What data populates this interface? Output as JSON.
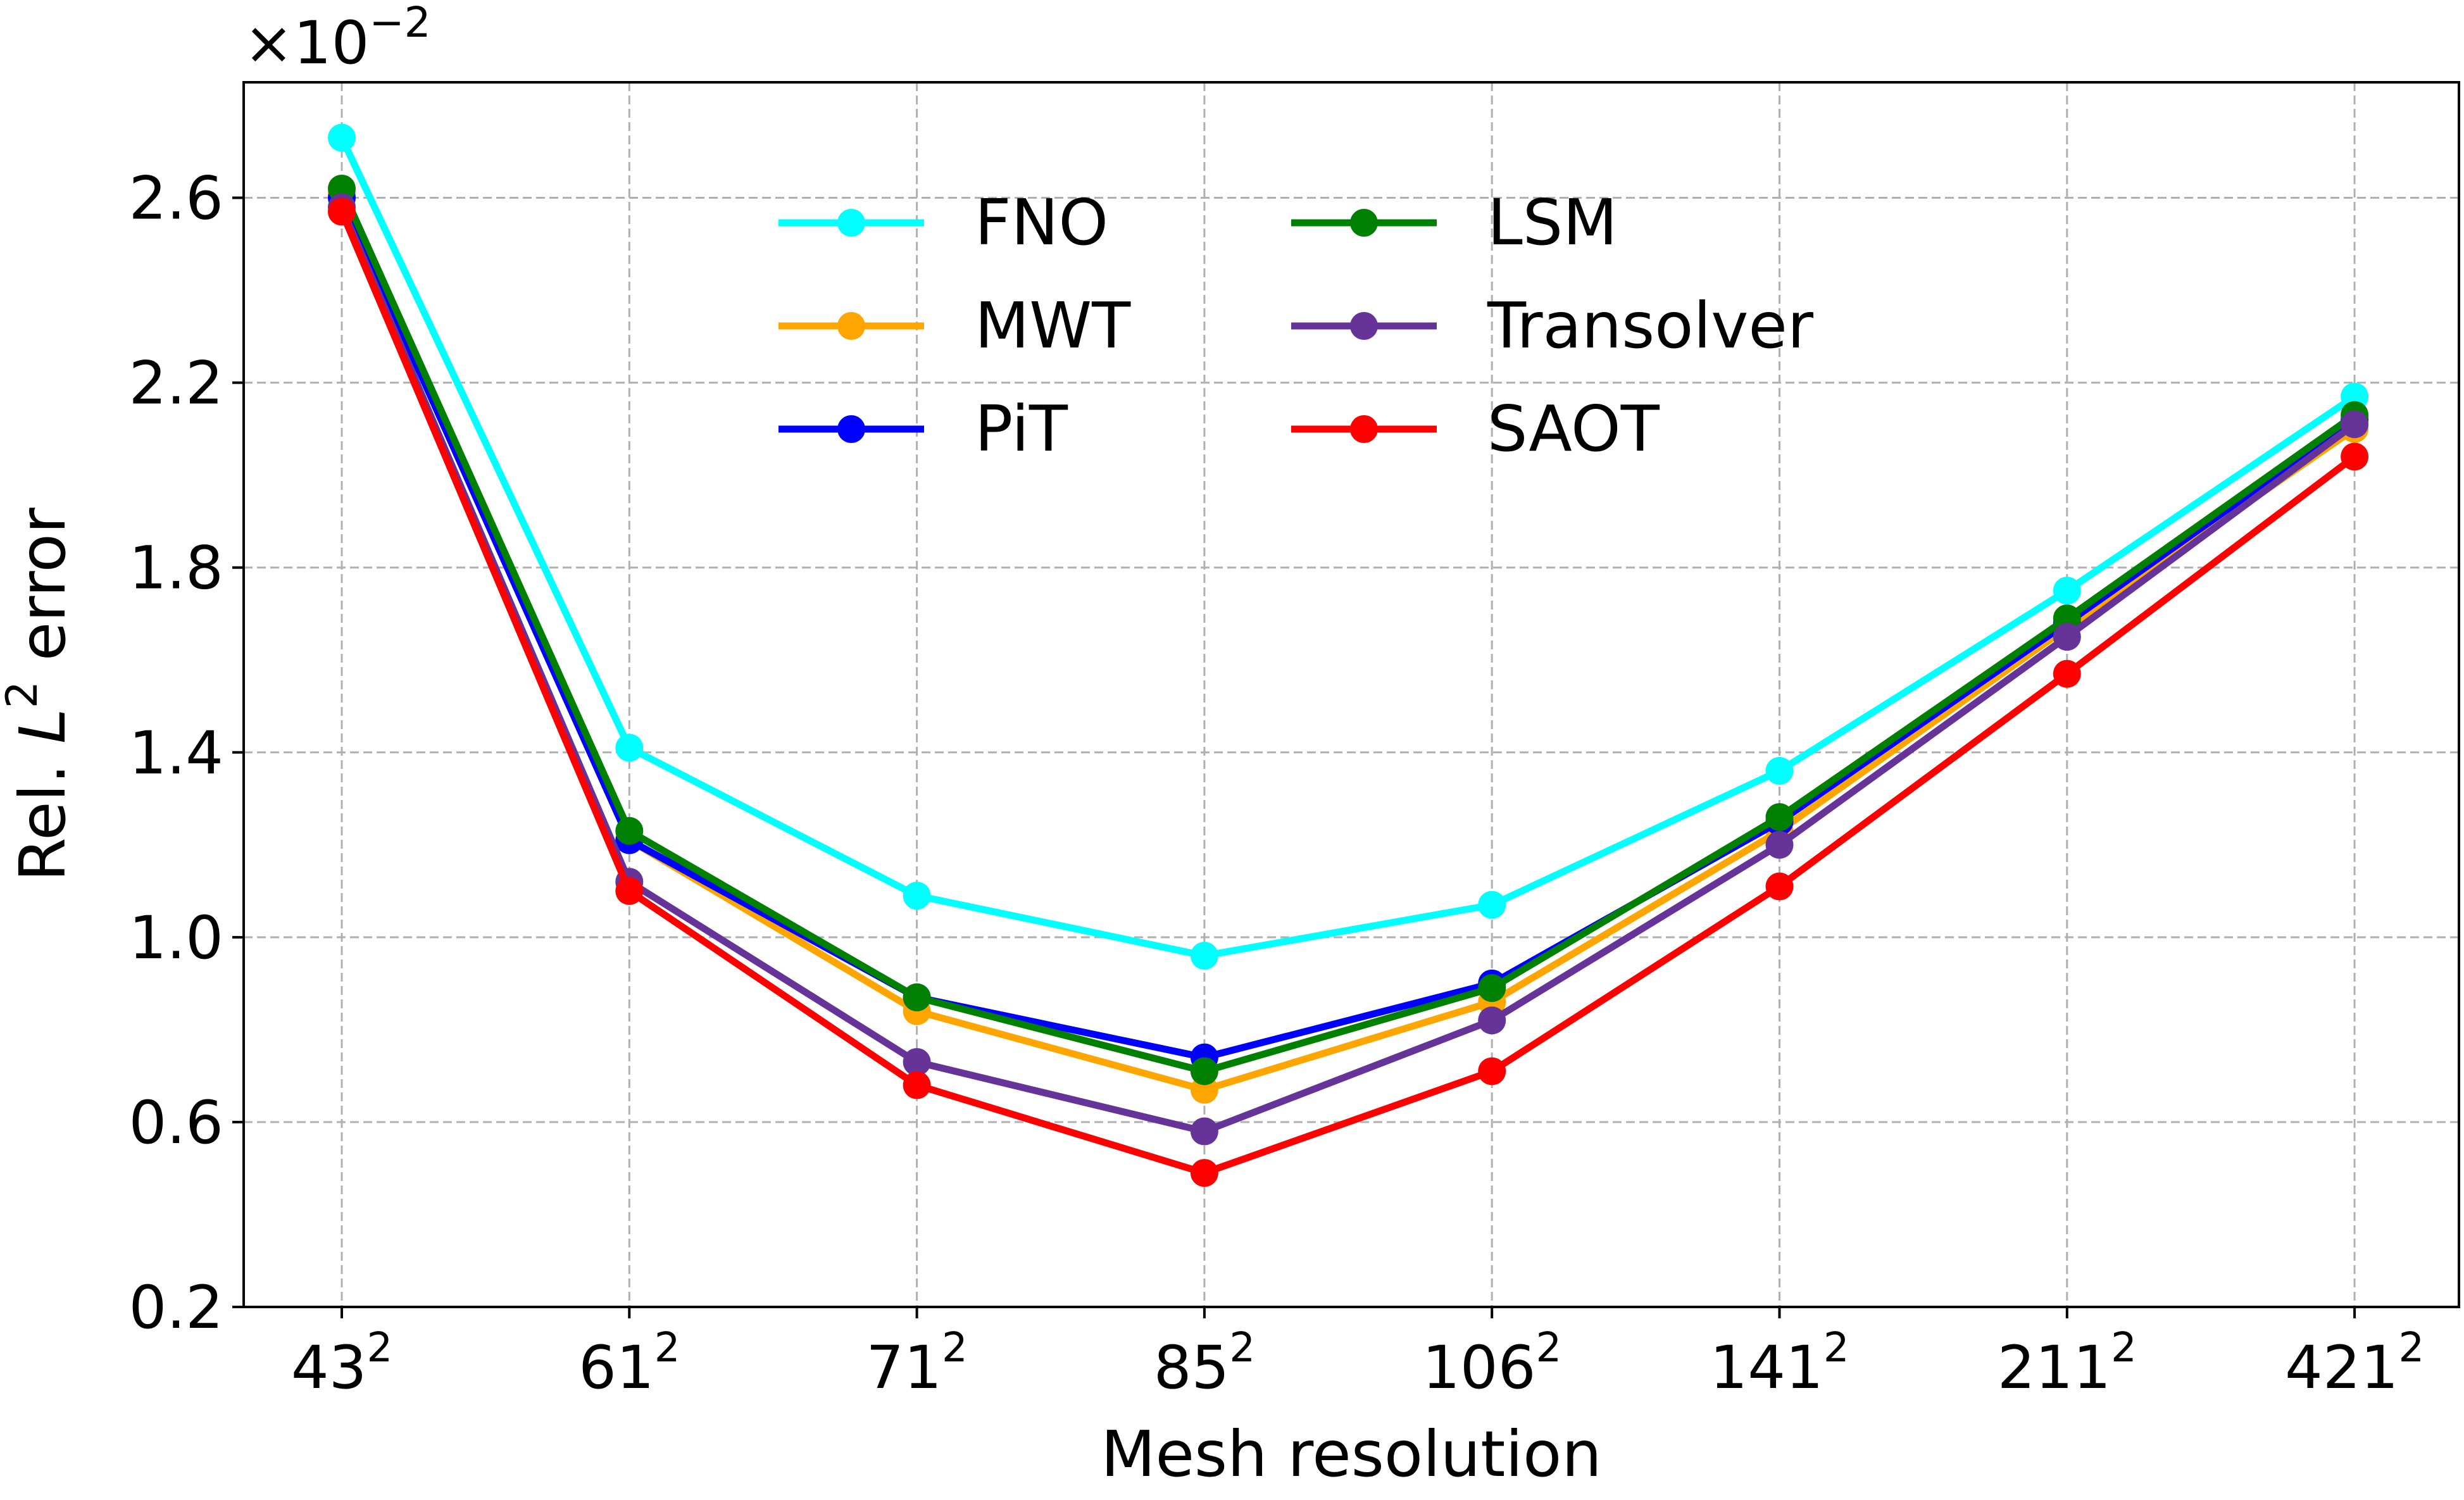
{
  "chart_data": {
    "type": "line",
    "xlabel": "Mesh resolution",
    "ylabel_prefix": "Rel. ",
    "ylabel_var": "L",
    "ylabel_sup": "2",
    "ylabel_suffix": " error",
    "scale_label": "×10",
    "scale_exponent": "−2",
    "categories": [
      {
        "base": "43",
        "exp": "2"
      },
      {
        "base": "61",
        "exp": "2"
      },
      {
        "base": "71",
        "exp": "2"
      },
      {
        "base": "85",
        "exp": "2"
      },
      {
        "base": "106",
        "exp": "2"
      },
      {
        "base": "141",
        "exp": "2"
      },
      {
        "base": "211",
        "exp": "2"
      },
      {
        "base": "421",
        "exp": "2"
      }
    ],
    "ylim": [
      0.2,
      2.85
    ],
    "yticks": [
      "0.2",
      "0.6",
      "1.0",
      "1.4",
      "1.8",
      "2.2",
      "2.6"
    ],
    "grid": true,
    "legend_position": "top-center",
    "series": [
      {
        "name": "FNO",
        "color": "#00ffff",
        "values": [
          2.73,
          1.41,
          1.09,
          0.96,
          1.07,
          1.36,
          1.75,
          2.17
        ]
      },
      {
        "name": "MWT",
        "color": "#ffa500",
        "values": [
          2.61,
          1.21,
          0.84,
          0.67,
          0.86,
          1.23,
          1.67,
          2.1
        ]
      },
      {
        "name": "PiT",
        "color": "#0000ff",
        "values": [
          2.6,
          1.21,
          0.87,
          0.74,
          0.9,
          1.25,
          1.68,
          2.12
        ]
      },
      {
        "name": "LSM",
        "color": "#008000",
        "values": [
          2.62,
          1.23,
          0.87,
          0.71,
          0.89,
          1.26,
          1.69,
          2.13
        ]
      },
      {
        "name": "Transolver",
        "color": "#663399",
        "values": [
          2.58,
          1.12,
          0.73,
          0.58,
          0.82,
          1.2,
          1.65,
          2.11
        ]
      },
      {
        "name": "SAOT",
        "color": "#ff0000",
        "values": [
          2.57,
          1.1,
          0.68,
          0.49,
          0.71,
          1.11,
          1.57,
          2.04
        ]
      }
    ]
  }
}
